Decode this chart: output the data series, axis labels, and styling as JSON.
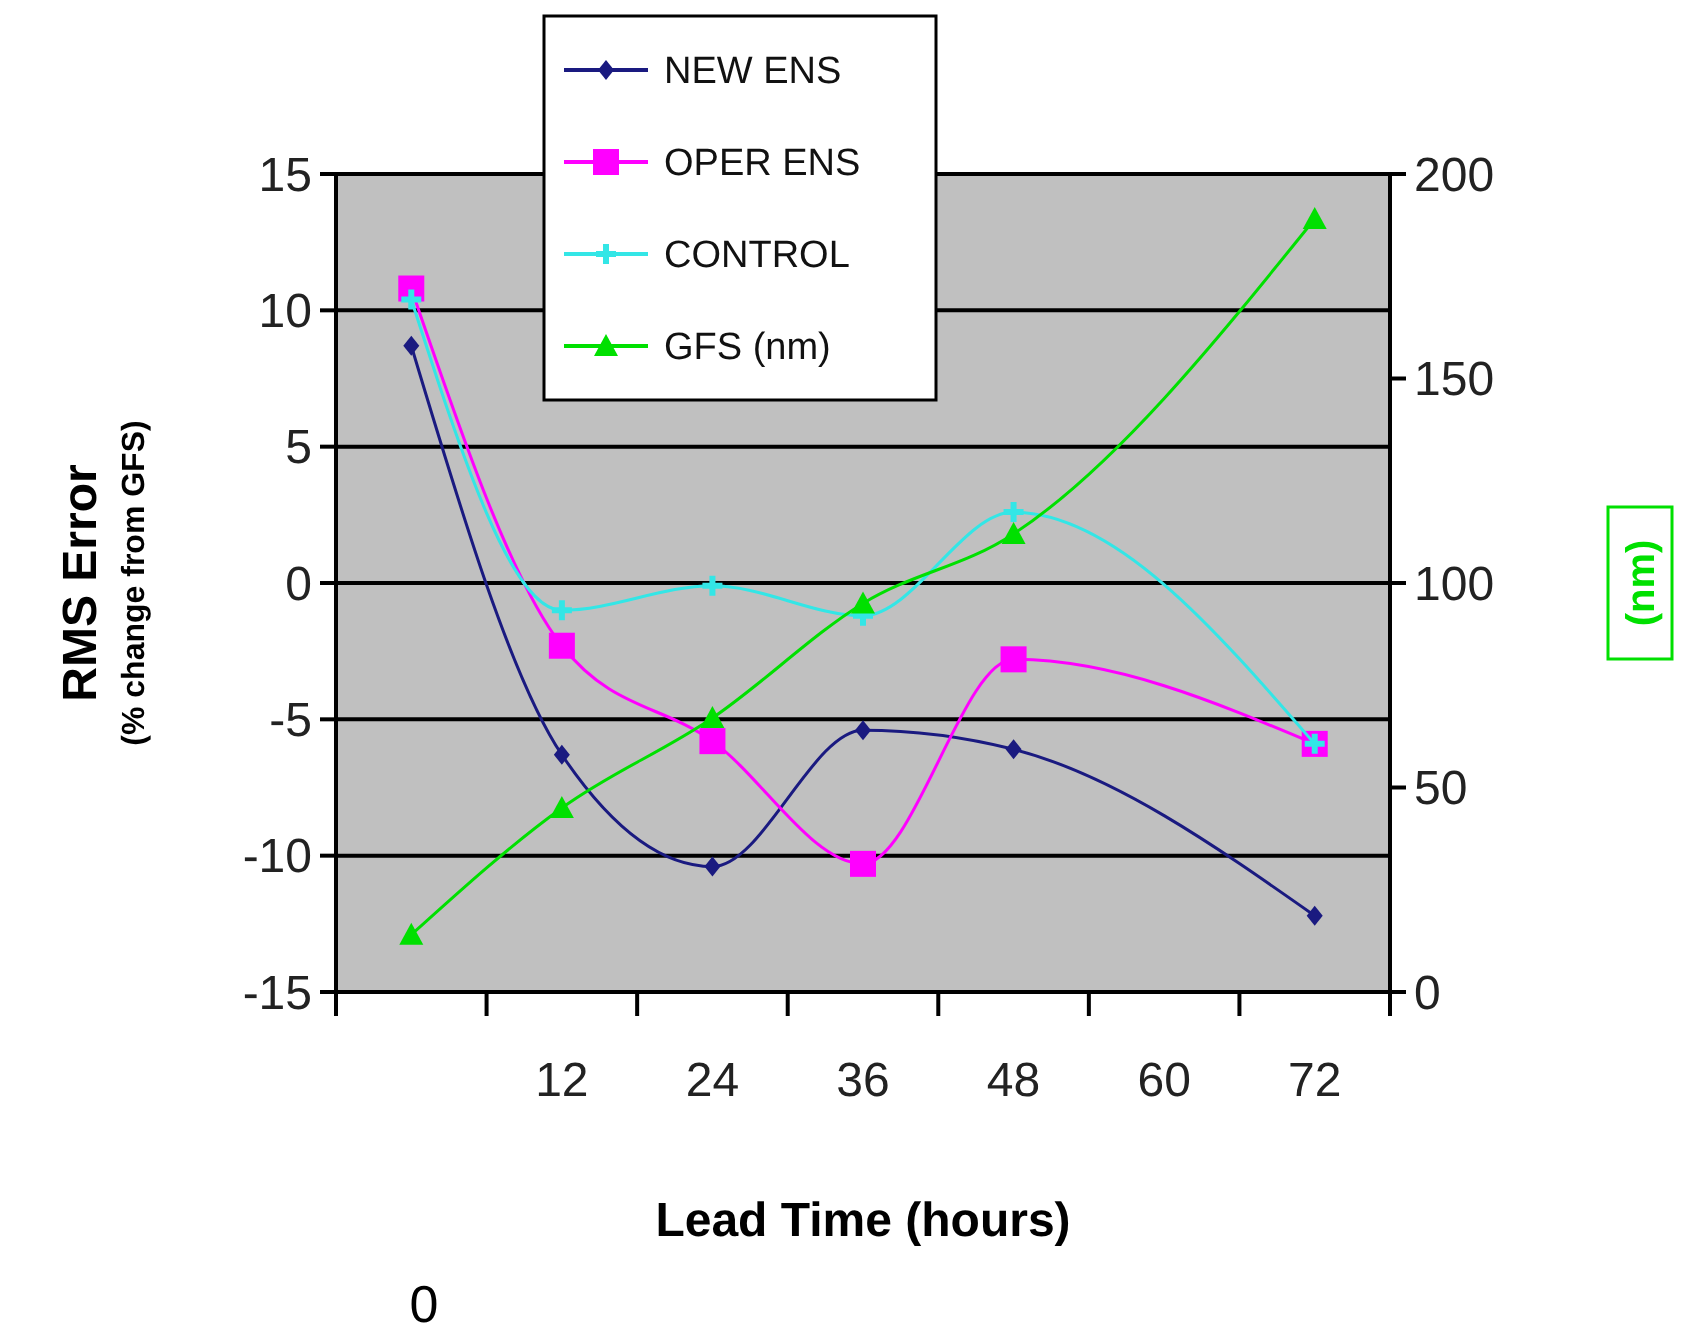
{
  "chart_data": {
    "type": "line",
    "xlabel": "Lead Time (hours)",
    "ylabel": "RMS Error\n(% change from GFS)",
    "y2label": "(nm)",
    "categories": [
      null,
      "12",
      "24",
      "36",
      "48",
      "60",
      "72"
    ],
    "series": [
      {
        "name": "NEW ENS",
        "color": "#1a1a80",
        "marker": "diamond",
        "values": [
          8.7,
          -6.3,
          -10.4,
          -5.4,
          -6.1,
          null,
          -12.2
        ]
      },
      {
        "name": "OPER ENS",
        "color": "#ff00ff",
        "marker": "square",
        "values": [
          10.8,
          -2.3,
          -5.8,
          -10.3,
          -2.8,
          null,
          -5.9
        ]
      },
      {
        "name": "CONTROL",
        "color": "#33e6e6",
        "marker": "cross",
        "values": [
          10.4,
          -1.0,
          -0.1,
          -1.2,
          2.6,
          null,
          -5.9
        ]
      },
      {
        "name": "GFS (nm)",
        "color": "#00e000",
        "marker": "triangle",
        "axis": "y2",
        "values": [
          14,
          45,
          67,
          95,
          112,
          null,
          189
        ]
      }
    ],
    "ylim": [
      -15,
      15
    ],
    "yticks": [
      -15,
      -10,
      -5,
      0,
      5,
      10,
      15
    ],
    "y2lim": [
      0,
      200
    ],
    "y2ticks": [
      0,
      50,
      100,
      150,
      200
    ],
    "grid": "y",
    "legend": "top",
    "annotations": [
      "0"
    ]
  }
}
